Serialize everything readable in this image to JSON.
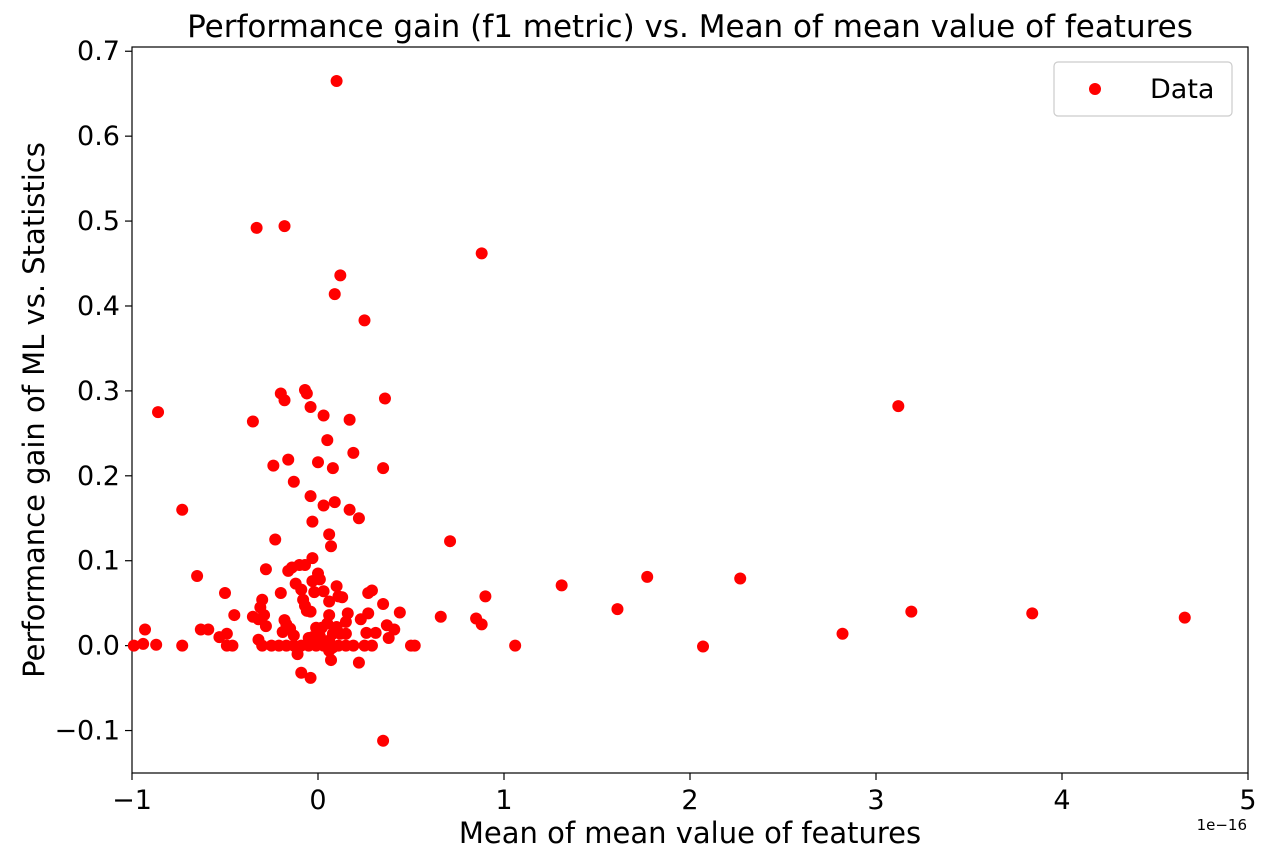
{
  "chart_data": {
    "type": "scatter",
    "title": "Performance gain (f1 metric) vs. Mean of mean value of features",
    "xlabel": "Mean of mean value of features",
    "ylabel": "Performance gain of ML vs. Statistics",
    "x_offset_label": "1e−16",
    "xlim": [
      -1,
      5
    ],
    "ylim": [
      -0.15,
      0.705
    ],
    "x_ticks": [
      -1,
      0,
      1,
      2,
      3,
      4,
      5
    ],
    "x_tick_labels": [
      "−1",
      "0",
      "1",
      "2",
      "3",
      "4",
      "5"
    ],
    "y_ticks": [
      -0.1,
      0.0,
      0.1,
      0.2,
      0.3,
      0.4,
      0.5,
      0.6,
      0.7
    ],
    "y_tick_labels": [
      "−0.1",
      "0.0",
      "0.1",
      "0.2",
      "0.3",
      "0.4",
      "0.5",
      "0.6",
      "0.7"
    ],
    "grid": false,
    "legend": "top-right",
    "series": [
      {
        "name": "Data",
        "color": "#ff0000",
        "marker": "circle",
        "points": [
          [
            0.1,
            0.665
          ],
          [
            -0.33,
            0.492
          ],
          [
            -0.18,
            0.494
          ],
          [
            0.88,
            0.462
          ],
          [
            0.12,
            0.436
          ],
          [
            0.09,
            0.414
          ],
          [
            0.25,
            0.383
          ],
          [
            -0.07,
            0.301
          ],
          [
            -0.06,
            0.297
          ],
          [
            -0.2,
            0.297
          ],
          [
            -0.18,
            0.289
          ],
          [
            0.36,
            0.291
          ],
          [
            -0.04,
            0.281
          ],
          [
            0.03,
            0.271
          ],
          [
            0.17,
            0.266
          ],
          [
            -0.35,
            0.264
          ],
          [
            3.12,
            0.282
          ],
          [
            -0.86,
            0.275
          ],
          [
            0.05,
            0.242
          ],
          [
            0.19,
            0.227
          ],
          [
            -0.16,
            0.219
          ],
          [
            0.0,
            0.216
          ],
          [
            -0.24,
            0.212
          ],
          [
            0.08,
            0.209
          ],
          [
            0.35,
            0.209
          ],
          [
            -0.13,
            0.193
          ],
          [
            -0.04,
            0.176
          ],
          [
            0.09,
            0.169
          ],
          [
            0.03,
            0.165
          ],
          [
            0.17,
            0.16
          ],
          [
            -0.73,
            0.16
          ],
          [
            0.22,
            0.15
          ],
          [
            -0.03,
            0.146
          ],
          [
            0.06,
            0.131
          ],
          [
            0.71,
            0.123
          ],
          [
            -0.23,
            0.125
          ],
          [
            0.07,
            0.117
          ],
          [
            -0.03,
            0.103
          ],
          [
            -0.1,
            0.095
          ],
          [
            -0.07,
            0.095
          ],
          [
            -0.14,
            0.092
          ],
          [
            -0.28,
            0.09
          ],
          [
            -0.16,
            0.088
          ],
          [
            0.0,
            0.085
          ],
          [
            0.01,
            0.078
          ],
          [
            -0.65,
            0.082
          ],
          [
            1.77,
            0.081
          ],
          [
            2.27,
            0.079
          ],
          [
            -0.12,
            0.073
          ],
          [
            -0.03,
            0.076
          ],
          [
            0.1,
            0.07
          ],
          [
            -0.09,
            0.066
          ],
          [
            1.31,
            0.071
          ],
          [
            0.29,
            0.065
          ],
          [
            0.27,
            0.062
          ],
          [
            -0.2,
            0.062
          ],
          [
            -0.02,
            0.063
          ],
          [
            0.03,
            0.064
          ],
          [
            0.11,
            0.058
          ],
          [
            0.13,
            0.057
          ],
          [
            0.9,
            0.058
          ],
          [
            -0.5,
            0.062
          ],
          [
            -0.08,
            0.054
          ],
          [
            -0.3,
            0.054
          ],
          [
            0.06,
            0.052
          ],
          [
            -0.07,
            0.047
          ],
          [
            -0.31,
            0.045
          ],
          [
            0.35,
            0.049
          ],
          [
            -0.06,
            0.041
          ],
          [
            -0.04,
            0.04
          ],
          [
            1.61,
            0.043
          ],
          [
            3.19,
            0.04
          ],
          [
            3.84,
            0.038
          ],
          [
            -0.45,
            0.036
          ],
          [
            -0.35,
            0.034
          ],
          [
            0.44,
            0.039
          ],
          [
            0.27,
            0.038
          ],
          [
            0.16,
            0.038
          ],
          [
            0.06,
            0.036
          ],
          [
            -0.29,
            0.036
          ],
          [
            0.66,
            0.034
          ],
          [
            0.85,
            0.032
          ],
          [
            4.66,
            0.033
          ],
          [
            -0.32,
            0.031
          ],
          [
            0.23,
            0.031
          ],
          [
            -0.18,
            0.03
          ],
          [
            0.15,
            0.028
          ],
          [
            0.05,
            0.026
          ],
          [
            0.88,
            0.025
          ],
          [
            -0.17,
            0.025
          ],
          [
            0.37,
            0.024
          ],
          [
            -0.28,
            0.023
          ],
          [
            0.1,
            0.022
          ],
          [
            0.02,
            0.021
          ],
          [
            -0.01,
            0.021
          ],
          [
            -0.15,
            0.02
          ],
          [
            0.41,
            0.019
          ],
          [
            -0.93,
            0.019
          ],
          [
            -0.63,
            0.019
          ],
          [
            -0.59,
            0.019
          ],
          [
            -0.19,
            0.016
          ],
          [
            0.26,
            0.015
          ],
          [
            0.31,
            0.015
          ],
          [
            0.15,
            0.014
          ],
          [
            0.12,
            0.014
          ],
          [
            0.08,
            0.014
          ],
          [
            -0.49,
            0.014
          ],
          [
            2.82,
            0.014
          ],
          [
            -0.13,
            0.012
          ],
          [
            0.01,
            0.011
          ],
          [
            -0.03,
            0.01
          ],
          [
            -0.05,
            0.009
          ],
          [
            -0.53,
            0.01
          ],
          [
            0.38,
            0.009
          ],
          [
            -0.32,
            0.007
          ],
          [
            0.06,
            0.006
          ],
          [
            -0.99,
            0.0
          ],
          [
            -0.94,
            0.002
          ],
          [
            -0.87,
            0.001
          ],
          [
            -0.73,
            0.0
          ],
          [
            -0.49,
            0.0
          ],
          [
            -0.46,
            0.0
          ],
          [
            -0.3,
            0.0
          ],
          [
            -0.25,
            0.0
          ],
          [
            -0.21,
            0.0
          ],
          [
            -0.17,
            0.0
          ],
          [
            -0.13,
            0.0
          ],
          [
            -0.09,
            0.0
          ],
          [
            -0.05,
            0.0
          ],
          [
            -0.01,
            0.0
          ],
          [
            0.03,
            0.0
          ],
          [
            0.07,
            0.0
          ],
          [
            0.11,
            0.0
          ],
          [
            0.15,
            0.0
          ],
          [
            0.19,
            0.0
          ],
          [
            0.25,
            0.0
          ],
          [
            0.29,
            0.0
          ],
          [
            0.5,
            0.0
          ],
          [
            0.52,
            0.0
          ],
          [
            1.06,
            0.0
          ],
          [
            2.07,
            -0.001
          ],
          [
            0.06,
            -0.006
          ],
          [
            0.08,
            -0.002
          ],
          [
            -0.11,
            -0.01
          ],
          [
            0.07,
            -0.017
          ],
          [
            0.22,
            -0.02
          ],
          [
            -0.09,
            -0.032
          ],
          [
            -0.04,
            -0.038
          ],
          [
            0.35,
            -0.112
          ]
        ]
      }
    ]
  }
}
